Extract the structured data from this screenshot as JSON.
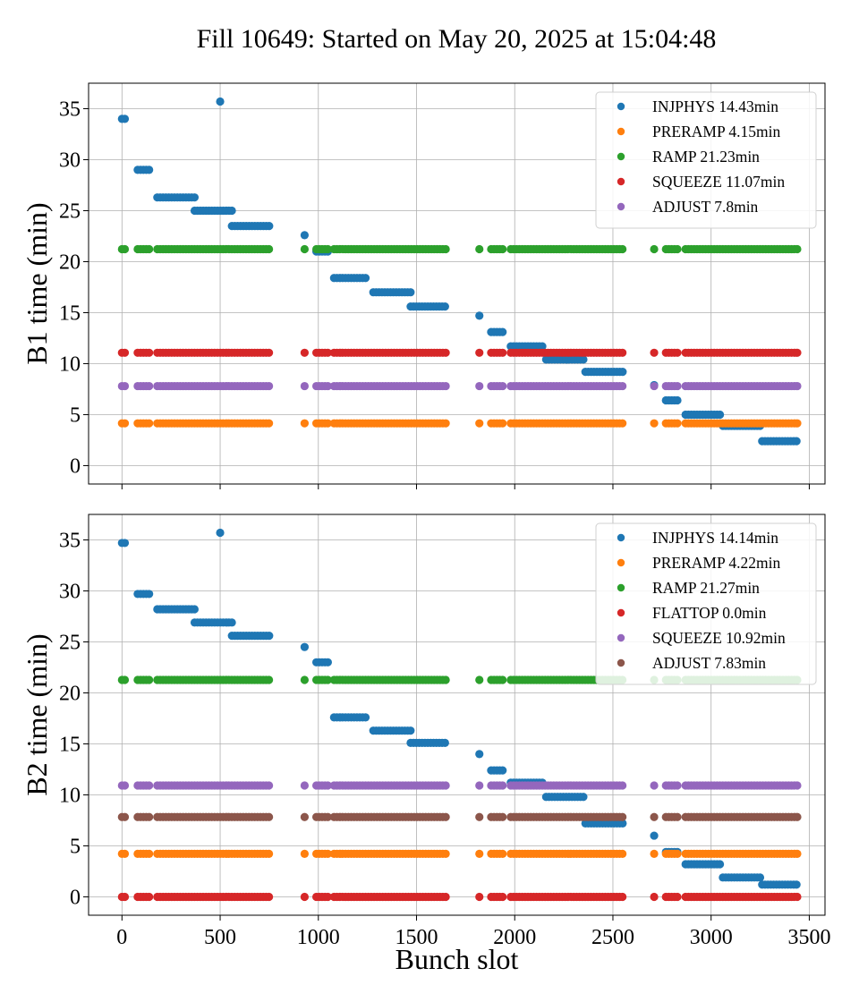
{
  "title": "Fill 10649: Started on May 20, 2025 at 15:04:48",
  "chart_data": [
    {
      "type": "scatter",
      "title": "",
      "xlabel": "",
      "ylabel": "B1 time (min)",
      "xlim": [
        -170,
        3580
      ],
      "ylim": [
        -1.8,
        37.5
      ],
      "xticks": [
        "0",
        "500",
        "1000",
        "1500",
        "2000",
        "2500",
        "3000",
        "3500"
      ],
      "yticks": [
        "0",
        "5",
        "10",
        "15",
        "20",
        "25",
        "30",
        "35"
      ],
      "grid": true,
      "legend_position": "top-right",
      "series": [
        {
          "name": "INJPHYS 14.43min",
          "color": "#1f77b4",
          "segments": [
            [
              0,
              25,
              34.0
            ],
            [
              80,
              150,
              29.0
            ],
            [
              180,
              370,
              26.3
            ],
            [
              370,
              560,
              25.0
            ],
            [
              560,
              750,
              23.5
            ],
            [
              930,
              935,
              22.6
            ],
            [
              990,
              1050,
              21.0
            ],
            [
              1080,
              1250,
              18.4
            ],
            [
              1280,
              1470,
              17.0
            ],
            [
              1470,
              1650,
              15.6
            ],
            [
              1820,
              1825,
              14.7
            ],
            [
              1880,
              1940,
              13.1
            ],
            [
              1980,
              2150,
              11.7
            ],
            [
              2160,
              2350,
              10.4
            ],
            [
              2360,
              2550,
              9.2
            ],
            [
              2710,
              2715,
              7.9
            ],
            [
              2770,
              2830,
              6.4
            ],
            [
              2870,
              3050,
              5.0
            ],
            [
              3060,
              3250,
              3.9
            ],
            [
              3260,
              3440,
              2.4
            ]
          ],
          "points": [
            [
              500,
              35.7
            ]
          ]
        },
        {
          "name": "PRERAMP 4.15min",
          "color": "#ff7f0e",
          "segments": [
            [
              0,
              25,
              4.15
            ],
            [
              80,
              150,
              4.15
            ],
            [
              180,
              750,
              4.15
            ],
            [
              930,
              935,
              4.15
            ],
            [
              990,
              1050,
              4.15
            ],
            [
              1080,
              1650,
              4.15
            ],
            [
              1820,
              1825,
              4.15
            ],
            [
              1880,
              1940,
              4.15
            ],
            [
              1980,
              2550,
              4.15
            ],
            [
              2710,
              2715,
              4.15
            ],
            [
              2770,
              2830,
              4.15
            ],
            [
              2870,
              3440,
              4.15
            ]
          ],
          "points": []
        },
        {
          "name": "RAMP 21.23min",
          "color": "#2ca02c",
          "segments": [
            [
              0,
              25,
              21.23
            ],
            [
              80,
              150,
              21.23
            ],
            [
              180,
              750,
              21.23
            ],
            [
              930,
              935,
              21.23
            ],
            [
              990,
              1050,
              21.23
            ],
            [
              1080,
              1650,
              21.23
            ],
            [
              1820,
              1825,
              21.23
            ],
            [
              1880,
              1940,
              21.23
            ],
            [
              1980,
              2550,
              21.23
            ],
            [
              2710,
              2715,
              21.23
            ],
            [
              2770,
              2830,
              21.23
            ],
            [
              2870,
              3440,
              21.23
            ]
          ],
          "points": []
        },
        {
          "name": "SQUEEZE 11.07min",
          "color": "#d62728",
          "segments": [
            [
              0,
              25,
              11.07
            ],
            [
              80,
              150,
              11.07
            ],
            [
              180,
              750,
              11.07
            ],
            [
              930,
              935,
              11.07
            ],
            [
              990,
              1050,
              11.07
            ],
            [
              1080,
              1650,
              11.07
            ],
            [
              1820,
              1825,
              11.07
            ],
            [
              1880,
              1940,
              11.07
            ],
            [
              1980,
              2550,
              11.07
            ],
            [
              2710,
              2715,
              11.07
            ],
            [
              2770,
              2830,
              11.07
            ],
            [
              2870,
              3440,
              11.07
            ]
          ],
          "points": []
        },
        {
          "name": "ADJUST 7.8min",
          "color": "#9467bd",
          "segments": [
            [
              0,
              25,
              7.8
            ],
            [
              80,
              150,
              7.8
            ],
            [
              180,
              750,
              7.8
            ],
            [
              930,
              935,
              7.8
            ],
            [
              990,
              1050,
              7.8
            ],
            [
              1080,
              1650,
              7.8
            ],
            [
              1820,
              1825,
              7.8
            ],
            [
              1880,
              1940,
              7.8
            ],
            [
              1980,
              2550,
              7.8
            ],
            [
              2710,
              2715,
              7.8
            ],
            [
              2770,
              2830,
              7.8
            ],
            [
              2870,
              3440,
              7.8
            ]
          ],
          "points": []
        }
      ]
    },
    {
      "type": "scatter",
      "title": "",
      "xlabel": "Bunch slot",
      "ylabel": "B2 time (min)",
      "xlim": [
        -170,
        3580
      ],
      "ylim": [
        -1.8,
        37.5
      ],
      "xticks": [
        "0",
        "500",
        "1000",
        "1500",
        "2000",
        "2500",
        "3000",
        "3500"
      ],
      "yticks": [
        "0",
        "5",
        "10",
        "15",
        "20",
        "25",
        "30",
        "35"
      ],
      "grid": true,
      "legend_position": "top-right",
      "series": [
        {
          "name": "INJPHYS 14.14min",
          "color": "#1f77b4",
          "segments": [
            [
              0,
              25,
              34.7
            ],
            [
              80,
              150,
              29.7
            ],
            [
              180,
              370,
              28.2
            ],
            [
              370,
              560,
              26.9
            ],
            [
              560,
              750,
              25.6
            ],
            [
              930,
              935,
              24.5
            ],
            [
              990,
              1050,
              23.0
            ],
            [
              1080,
              1250,
              17.6
            ],
            [
              1280,
              1470,
              16.3
            ],
            [
              1470,
              1650,
              15.1
            ],
            [
              1820,
              1825,
              14.0
            ],
            [
              1880,
              1940,
              12.4
            ],
            [
              1980,
              2150,
              11.2
            ],
            [
              2160,
              2350,
              9.8
            ],
            [
              2360,
              2550,
              7.2
            ],
            [
              2710,
              2715,
              6.0
            ],
            [
              2770,
              2830,
              4.4
            ],
            [
              2870,
              3050,
              3.2
            ],
            [
              3060,
              3250,
              1.9
            ],
            [
              3260,
              3440,
              1.2
            ]
          ],
          "points": [
            [
              500,
              35.7
            ]
          ]
        },
        {
          "name": "PRERAMP 4.22min",
          "color": "#ff7f0e",
          "segments": [
            [
              0,
              25,
              4.22
            ],
            [
              80,
              150,
              4.22
            ],
            [
              180,
              750,
              4.22
            ],
            [
              930,
              935,
              4.22
            ],
            [
              990,
              1050,
              4.22
            ],
            [
              1080,
              1650,
              4.22
            ],
            [
              1820,
              1825,
              4.22
            ],
            [
              1880,
              1940,
              4.22
            ],
            [
              1980,
              2550,
              4.22
            ],
            [
              2710,
              2715,
              4.22
            ],
            [
              2770,
              2830,
              4.22
            ],
            [
              2870,
              3440,
              4.22
            ]
          ],
          "points": []
        },
        {
          "name": "RAMP 21.27min",
          "color": "#2ca02c",
          "segments": [
            [
              0,
              25,
              21.27
            ],
            [
              80,
              150,
              21.27
            ],
            [
              180,
              750,
              21.27
            ],
            [
              930,
              935,
              21.27
            ],
            [
              990,
              1050,
              21.27
            ],
            [
              1080,
              1650,
              21.27
            ],
            [
              1820,
              1825,
              21.27
            ],
            [
              1880,
              1940,
              21.27
            ],
            [
              1980,
              2550,
              21.27
            ],
            [
              2710,
              2715,
              21.27
            ],
            [
              2770,
              2830,
              21.27
            ],
            [
              2870,
              3440,
              21.27
            ]
          ],
          "points": []
        },
        {
          "name": "FLATTOP 0.0min",
          "color": "#d62728",
          "segments": [
            [
              0,
              25,
              0.0
            ],
            [
              80,
              150,
              0.0
            ],
            [
              180,
              750,
              0.0
            ],
            [
              930,
              935,
              0.0
            ],
            [
              990,
              1050,
              0.0
            ],
            [
              1080,
              1650,
              0.0
            ],
            [
              1820,
              1825,
              0.0
            ],
            [
              1880,
              1940,
              0.0
            ],
            [
              1980,
              2550,
              0.0
            ],
            [
              2710,
              2715,
              0.0
            ],
            [
              2770,
              2830,
              0.0
            ],
            [
              2870,
              3440,
              0.0
            ]
          ],
          "points": []
        },
        {
          "name": "SQUEEZE 10.92min",
          "color": "#9467bd",
          "segments": [
            [
              0,
              25,
              10.92
            ],
            [
              80,
              150,
              10.92
            ],
            [
              180,
              750,
              10.92
            ],
            [
              930,
              935,
              10.92
            ],
            [
              990,
              1050,
              10.92
            ],
            [
              1080,
              1650,
              10.92
            ],
            [
              1820,
              1825,
              10.92
            ],
            [
              1880,
              1940,
              10.92
            ],
            [
              1980,
              2550,
              10.92
            ],
            [
              2710,
              2715,
              10.92
            ],
            [
              2770,
              2830,
              10.92
            ],
            [
              2870,
              3440,
              10.92
            ]
          ],
          "points": []
        },
        {
          "name": "ADJUST 7.83min",
          "color": "#8c564b",
          "segments": [
            [
              0,
              25,
              7.83
            ],
            [
              80,
              150,
              7.83
            ],
            [
              180,
              750,
              7.83
            ],
            [
              930,
              935,
              7.83
            ],
            [
              990,
              1050,
              7.83
            ],
            [
              1080,
              1650,
              7.83
            ],
            [
              1820,
              1825,
              7.83
            ],
            [
              1880,
              1940,
              7.83
            ],
            [
              1980,
              2550,
              7.83
            ],
            [
              2710,
              2715,
              7.83
            ],
            [
              2770,
              2830,
              7.83
            ],
            [
              2870,
              3440,
              7.83
            ]
          ],
          "points": []
        }
      ]
    }
  ]
}
